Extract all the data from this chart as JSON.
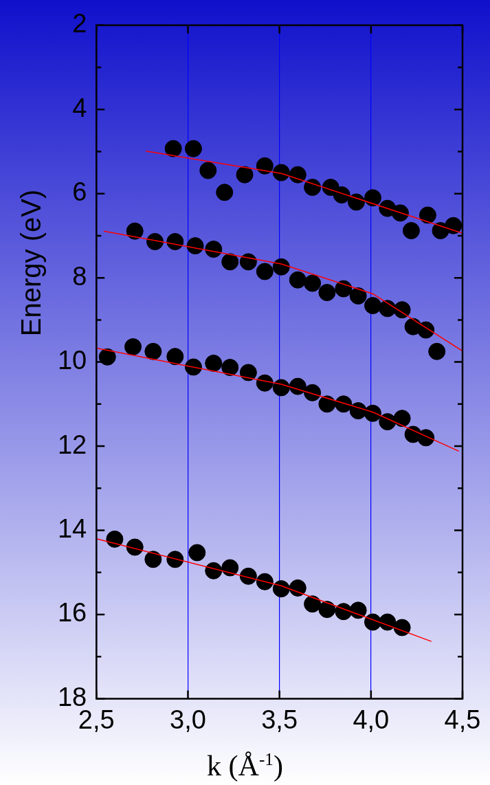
{
  "chart_data": {
    "type": "scatter",
    "xlabel": "k (Å$^{-1}$)",
    "ylabel": "Energy (eV)",
    "xlim": [
      2.5,
      4.5
    ],
    "ylim": [
      18,
      2
    ],
    "xticks": [
      {
        "value": 2.5,
        "label": "2,5"
      },
      {
        "value": 3.0,
        "label": "3,0"
      },
      {
        "value": 3.5,
        "label": "3,5"
      },
      {
        "value": 4.0,
        "label": "4,0"
      },
      {
        "value": 4.5,
        "label": "4,5"
      }
    ],
    "yticks": [
      2,
      {
        "value": 3,
        "label": null
      },
      4,
      {
        "value": 5,
        "label": null
      },
      6,
      {
        "value": 7,
        "label": null
      },
      8,
      {
        "value": 9,
        "label": null
      },
      10,
      {
        "value": 11,
        "label": null
      },
      12,
      {
        "value": 13,
        "label": null
      },
      14,
      {
        "value": 15,
        "label": null
      },
      16,
      {
        "value": 17,
        "label": null
      },
      18
    ],
    "grid": "x",
    "marker": "circle",
    "series": [
      {
        "type": "scatter",
        "color": "#000000",
        "x": [
          2.92,
          3.03,
          3.11,
          3.2,
          3.31,
          3.42,
          3.51,
          3.6,
          3.68,
          3.78,
          3.84,
          3.92,
          4.01,
          4.09,
          4.16,
          4.22,
          4.31,
          4.38,
          4.45
        ],
        "values": [
          4.93,
          4.93,
          5.45,
          5.97,
          5.55,
          5.34,
          5.5,
          5.55,
          5.85,
          5.85,
          6.03,
          6.2,
          6.1,
          6.35,
          6.46,
          6.88,
          6.51,
          6.88,
          6.76
        ]
      },
      {
        "type": "scatter",
        "color": "#000000",
        "x": [
          2.71,
          2.82,
          2.93,
          3.04,
          3.14,
          3.23,
          3.33,
          3.42,
          3.51,
          3.6,
          3.68,
          3.76,
          3.85,
          3.93,
          4.01,
          4.09,
          4.17,
          4.23,
          4.3,
          4.36
        ],
        "values": [
          6.89,
          7.14,
          7.14,
          7.24,
          7.32,
          7.62,
          7.62,
          7.85,
          7.74,
          8.05,
          8.13,
          8.35,
          8.26,
          8.43,
          8.66,
          8.73,
          8.76,
          9.16,
          9.24,
          9.75
        ]
      },
      {
        "type": "scatter",
        "color": "#000000",
        "x": [
          2.56,
          2.7,
          2.81,
          2.93,
          3.03,
          3.14,
          3.23,
          3.33,
          3.42,
          3.51,
          3.6,
          3.68,
          3.76,
          3.85,
          3.93,
          4.01,
          4.09,
          4.17,
          4.23,
          4.3
        ],
        "values": [
          9.88,
          9.64,
          9.75,
          9.87,
          10.12,
          10.03,
          10.13,
          10.25,
          10.5,
          10.61,
          10.58,
          10.73,
          11.0,
          11.0,
          11.16,
          11.22,
          11.42,
          11.34,
          11.72,
          11.8
        ]
      },
      {
        "type": "scatter",
        "color": "#000000",
        "x": [
          2.6,
          2.71,
          2.81,
          2.93,
          3.05,
          3.14,
          3.23,
          3.33,
          3.42,
          3.51,
          3.6,
          3.68,
          3.76,
          3.85,
          3.93,
          4.01,
          4.09,
          4.17
        ],
        "values": [
          14.21,
          14.4,
          14.69,
          14.69,
          14.53,
          14.96,
          14.89,
          15.09,
          15.22,
          15.39,
          15.37,
          15.75,
          15.88,
          15.93,
          15.9,
          16.18,
          16.18,
          16.31
        ]
      },
      {
        "type": "line",
        "marker": "none",
        "color": "#ff0000",
        "x": [
          2.77,
          3.51,
          4.5
        ],
        "values": [
          4.99,
          5.52,
          6.94
        ]
      },
      {
        "type": "line",
        "marker": "none",
        "color": "#ff0000",
        "x": [
          2.54,
          3.51,
          4.01,
          4.5
        ],
        "values": [
          6.89,
          7.67,
          8.38,
          9.74
        ]
      },
      {
        "type": "line",
        "marker": "none",
        "color": "#ff0000",
        "x": [
          2.5,
          3.51,
          4.01,
          4.48
        ],
        "values": [
          9.67,
          10.53,
          11.19,
          12.12
        ]
      },
      {
        "type": "line",
        "marker": "none",
        "color": "#ff0000",
        "x": [
          2.5,
          3.51,
          4.33
        ],
        "values": [
          14.2,
          15.32,
          16.64
        ]
      }
    ]
  }
}
